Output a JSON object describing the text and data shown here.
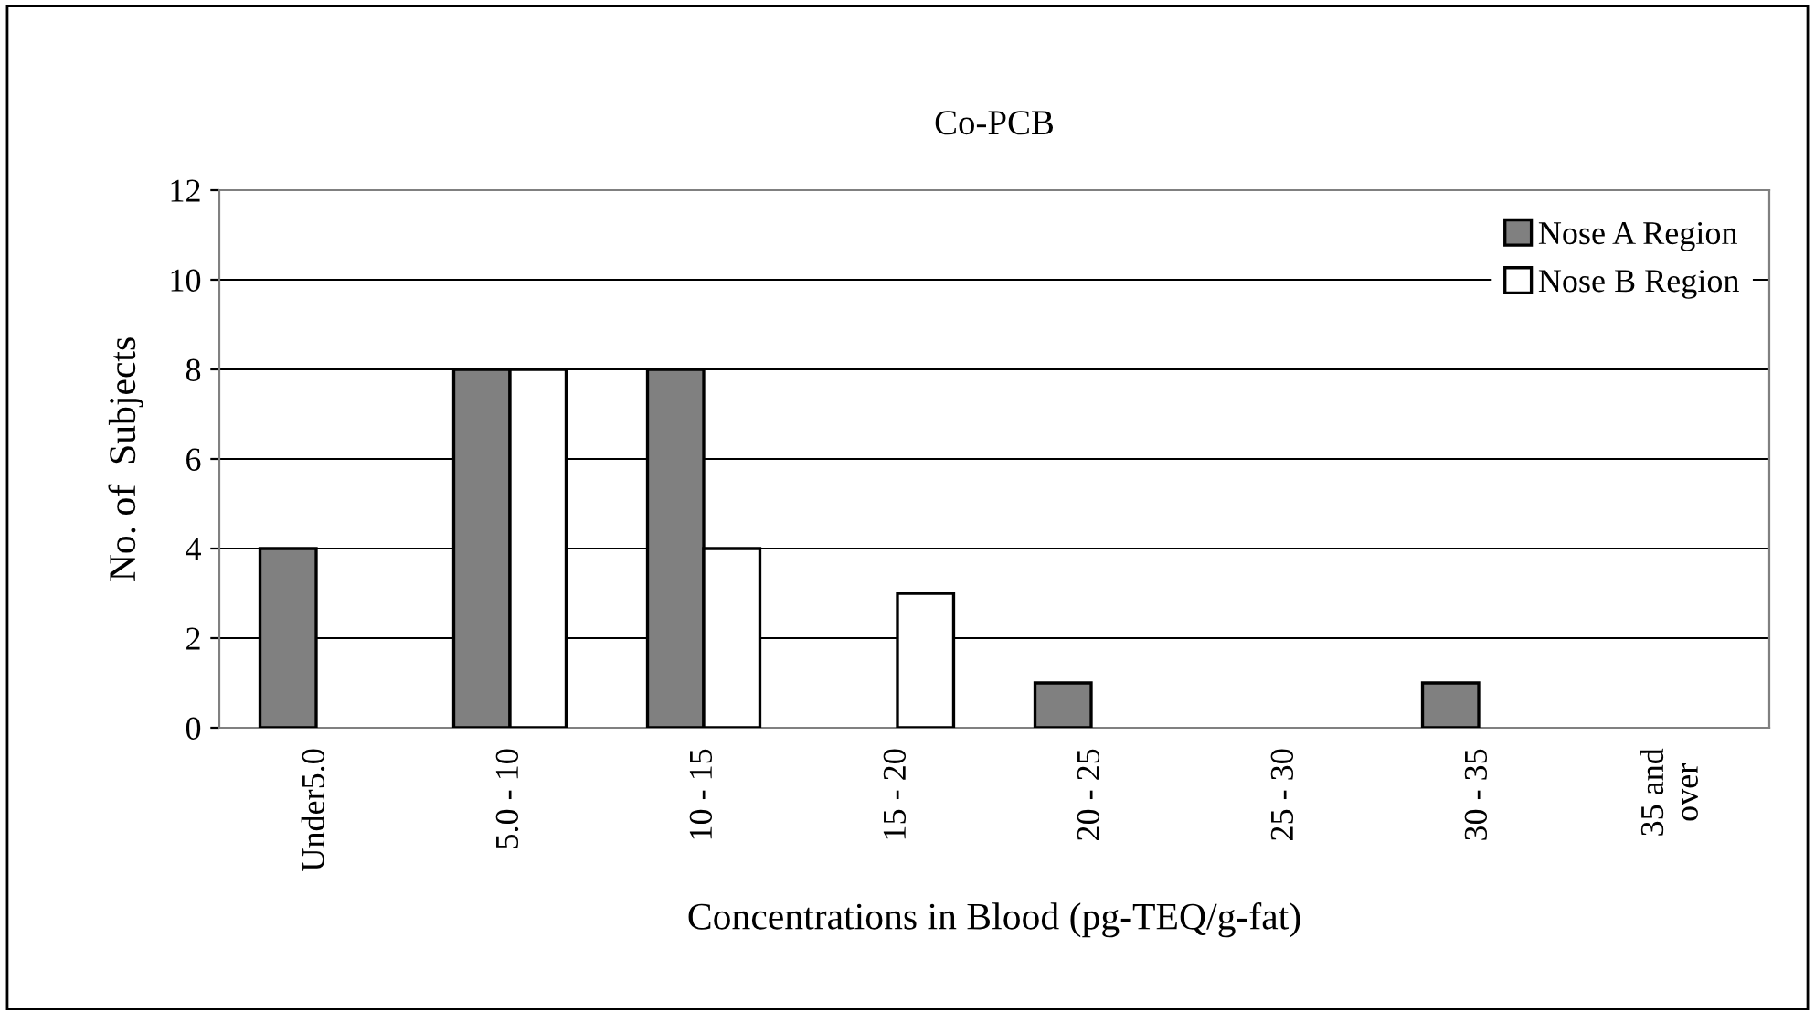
{
  "chart_data": {
    "type": "bar",
    "title": "Co-PCB",
    "xlabel": "Concentrations in Blood (pg-TEQ/g-fat)",
    "ylabel": "No. of  Subjects",
    "categories": [
      "Under5.0",
      "5.0 - 10",
      "10 - 15",
      "15 - 20",
      "20 - 25",
      "25 - 30",
      "30 - 35",
      "35 and\nover"
    ],
    "series": [
      {
        "name": "Nose A Region",
        "color": "#808080",
        "values": [
          4,
          8,
          8,
          0,
          1,
          0,
          1,
          0
        ]
      },
      {
        "name": "Nose B Region",
        "color": "#ffffff",
        "values": [
          0,
          8,
          4,
          3,
          0,
          0,
          0,
          0
        ]
      }
    ],
    "ylim": [
      0,
      12
    ],
    "yticks": [
      0,
      2,
      4,
      6,
      8,
      10,
      12
    ],
    "grid": "y",
    "legend": "top right"
  }
}
